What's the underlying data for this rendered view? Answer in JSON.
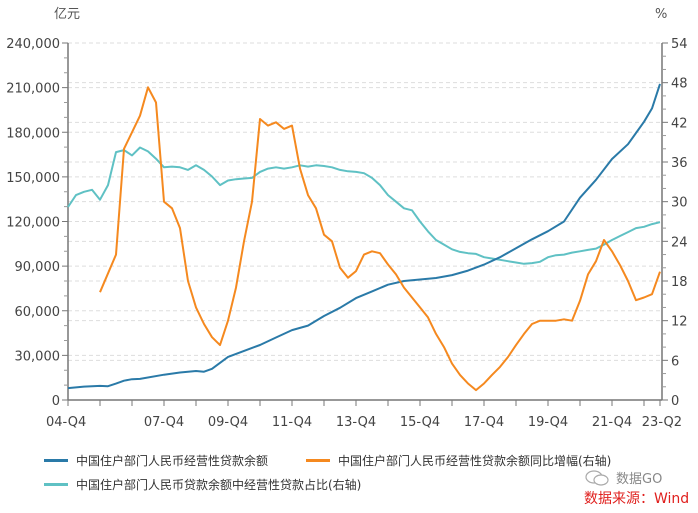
{
  "chart_data": {
    "type": "line",
    "title": "",
    "left_axis": {
      "unit_label": "亿元",
      "min": 0,
      "max": 240000,
      "ticks": [
        0,
        30000,
        60000,
        90000,
        120000,
        150000,
        180000,
        210000,
        240000
      ],
      "tick_labels": [
        "0",
        "30,000",
        "60,000",
        "90,000",
        "120,000",
        "150,000",
        "180,000",
        "210,000",
        "240,000"
      ]
    },
    "right_axis": {
      "unit_label": "%",
      "min": 0,
      "max": 54,
      "ticks": [
        0,
        6,
        12,
        18,
        24,
        30,
        36,
        42,
        48,
        54
      ],
      "tick_labels": [
        "0",
        "6",
        "12",
        "18",
        "24",
        "30",
        "36",
        "42",
        "48",
        "54"
      ]
    },
    "x_axis": {
      "tick_labels": [
        "04-Q4",
        "07-Q4",
        "09-Q4",
        "11-Q4",
        "13-Q4",
        "15-Q4",
        "17-Q4",
        "19-Q4",
        "21-Q4",
        "23-Q2"
      ],
      "tick_positions_q": [
        0,
        12,
        20,
        28,
        36,
        44,
        52,
        60,
        68,
        74
      ]
    },
    "grid": true,
    "legend_position": "bottom",
    "series": [
      {
        "name": "中国住户部门人民币经营性贷款余额",
        "axis": "left",
        "color": "#2a7aa8",
        "points": [
          [
            0,
            8000
          ],
          [
            2,
            9000
          ],
          [
            4,
            9500
          ],
          [
            5,
            9300
          ],
          [
            6,
            11000
          ],
          [
            7,
            13000
          ],
          [
            8,
            14000
          ],
          [
            9,
            14200
          ],
          [
            12,
            17000
          ],
          [
            14,
            18500
          ],
          [
            16,
            19500
          ],
          [
            17,
            19000
          ],
          [
            18,
            21000
          ],
          [
            20,
            29000
          ],
          [
            22,
            33000
          ],
          [
            24,
            37000
          ],
          [
            26,
            42000
          ],
          [
            28,
            47000
          ],
          [
            30,
            50000
          ],
          [
            32,
            56500
          ],
          [
            34,
            62000
          ],
          [
            36,
            68500
          ],
          [
            38,
            73000
          ],
          [
            40,
            77500
          ],
          [
            42,
            80000
          ],
          [
            44,
            81000
          ],
          [
            46,
            82000
          ],
          [
            48,
            84000
          ],
          [
            50,
            87000
          ],
          [
            52,
            91000
          ],
          [
            54,
            96000
          ],
          [
            56,
            102000
          ],
          [
            58,
            108000
          ],
          [
            60,
            113500
          ],
          [
            62,
            120000
          ],
          [
            64,
            136000
          ],
          [
            66,
            148000
          ],
          [
            68,
            162000
          ],
          [
            70,
            172000
          ],
          [
            72,
            187000
          ],
          [
            73,
            196000
          ],
          [
            74,
            212500
          ]
        ]
      },
      {
        "name": "中国住户部门人民币经营性贷款余额同比增幅(右轴)",
        "axis": "right",
        "color": "#f5891f",
        "points": [
          [
            4,
            16.3
          ],
          [
            6,
            22
          ],
          [
            7,
            38
          ],
          [
            8,
            40.5
          ],
          [
            9,
            43
          ],
          [
            10,
            47.3
          ],
          [
            11,
            45
          ],
          [
            12,
            30
          ],
          [
            13,
            29
          ],
          [
            14,
            26
          ],
          [
            15,
            18
          ],
          [
            16,
            14
          ],
          [
            17,
            11.5
          ],
          [
            18,
            9.5
          ],
          [
            19,
            8.3
          ],
          [
            20,
            12
          ],
          [
            21,
            17
          ],
          [
            22,
            24
          ],
          [
            23,
            30
          ],
          [
            24,
            42.5
          ],
          [
            25,
            41.5
          ],
          [
            26,
            42
          ],
          [
            27,
            41
          ],
          [
            28,
            41.5
          ],
          [
            29,
            35
          ],
          [
            30,
            31
          ],
          [
            31,
            29
          ],
          [
            32,
            25
          ],
          [
            33,
            24
          ],
          [
            34,
            20
          ],
          [
            35,
            18.5
          ],
          [
            36,
            19.5
          ],
          [
            37,
            22
          ],
          [
            38,
            22.5
          ],
          [
            39,
            22.2
          ],
          [
            40,
            20.5
          ],
          [
            41,
            19
          ],
          [
            42,
            17
          ],
          [
            43,
            15.5
          ],
          [
            44,
            14
          ],
          [
            45,
            12.5
          ],
          [
            46,
            10
          ],
          [
            47,
            8
          ],
          [
            48,
            5.5
          ],
          [
            49,
            3.8
          ],
          [
            50,
            2.5
          ],
          [
            51,
            1.5
          ],
          [
            52,
            2.5
          ],
          [
            53,
            3.8
          ],
          [
            54,
            5
          ],
          [
            55,
            6.5
          ],
          [
            56,
            8.3
          ],
          [
            57,
            10
          ],
          [
            58,
            11.5
          ],
          [
            59,
            12
          ],
          [
            60,
            12
          ],
          [
            61,
            12
          ],
          [
            62,
            12.2
          ],
          [
            63,
            12
          ],
          [
            64,
            15
          ],
          [
            65,
            19
          ],
          [
            66,
            21
          ],
          [
            67,
            24.2
          ],
          [
            68,
            22.5
          ],
          [
            69,
            20.4
          ],
          [
            70,
            18
          ],
          [
            71,
            15.1
          ],
          [
            72,
            15.5
          ],
          [
            73,
            16
          ],
          [
            74,
            19.4
          ]
        ]
      },
      {
        "name": "中国住户部门人民币贷款余额中经营性贷款占比(右轴)",
        "axis": "right",
        "color": "#5fc1c4",
        "points": [
          [
            0,
            29.2
          ],
          [
            1,
            31
          ],
          [
            2,
            31.5
          ],
          [
            3,
            31.8
          ],
          [
            4,
            30.3
          ],
          [
            5,
            32.5
          ],
          [
            6,
            37.5
          ],
          [
            7,
            37.8
          ],
          [
            8,
            37
          ],
          [
            9,
            38.2
          ],
          [
            10,
            37.6
          ],
          [
            11,
            36.5
          ],
          [
            12,
            35.2
          ],
          [
            13,
            35.3
          ],
          [
            14,
            35.2
          ],
          [
            15,
            34.8
          ],
          [
            16,
            35.5
          ],
          [
            17,
            34.8
          ],
          [
            18,
            33.8
          ],
          [
            19,
            32.5
          ],
          [
            20,
            33.2
          ],
          [
            21,
            33.4
          ],
          [
            22,
            33.5
          ],
          [
            23,
            33.6
          ],
          [
            24,
            34.5
          ],
          [
            25,
            35
          ],
          [
            26,
            35.2
          ],
          [
            27,
            35
          ],
          [
            28,
            35.2
          ],
          [
            29,
            35.5
          ],
          [
            30,
            35.3
          ],
          [
            31,
            35.5
          ],
          [
            32,
            35.4
          ],
          [
            33,
            35.2
          ],
          [
            34,
            34.8
          ],
          [
            35,
            34.6
          ],
          [
            36,
            34.5
          ],
          [
            37,
            34.3
          ],
          [
            38,
            33.6
          ],
          [
            39,
            32.5
          ],
          [
            40,
            31
          ],
          [
            41,
            30
          ],
          [
            42,
            29
          ],
          [
            43,
            28.7
          ],
          [
            44,
            27
          ],
          [
            45,
            25.5
          ],
          [
            46,
            24.2
          ],
          [
            47,
            23.5
          ],
          [
            48,
            22.8
          ],
          [
            49,
            22.4
          ],
          [
            50,
            22.2
          ],
          [
            51,
            22.1
          ],
          [
            52,
            21.6
          ],
          [
            53,
            21.4
          ],
          [
            54,
            21.2
          ],
          [
            55,
            21
          ],
          [
            56,
            20.8
          ],
          [
            57,
            20.6
          ],
          [
            58,
            20.7
          ],
          [
            59,
            20.9
          ],
          [
            60,
            21.6
          ],
          [
            61,
            21.9
          ],
          [
            62,
            22
          ],
          [
            63,
            22.3
          ],
          [
            64,
            22.5
          ],
          [
            65,
            22.7
          ],
          [
            66,
            22.9
          ],
          [
            67,
            23.5
          ],
          [
            68,
            24.2
          ],
          [
            69,
            24.8
          ],
          [
            70,
            25.4
          ],
          [
            71,
            26
          ],
          [
            72,
            26.2
          ],
          [
            73,
            26.6
          ],
          [
            74,
            26.9
          ]
        ]
      }
    ]
  },
  "legend": {
    "items": [
      {
        "label": "中国住户部门人民币经营性贷款余额",
        "color": "#2a7aa8"
      },
      {
        "label": "中国住户部门人民币经营性贷款余额同比增幅(右轴)",
        "color": "#f5891f"
      },
      {
        "label": "中国住户部门人民币贷款余额中经营性贷款占比(右轴)",
        "color": "#5fc1c4"
      }
    ]
  },
  "watermark": {
    "icon": "wechat-icon",
    "text": "数据GO"
  },
  "source": {
    "text": "数据来源：Wind",
    "color": "#e0201e"
  }
}
